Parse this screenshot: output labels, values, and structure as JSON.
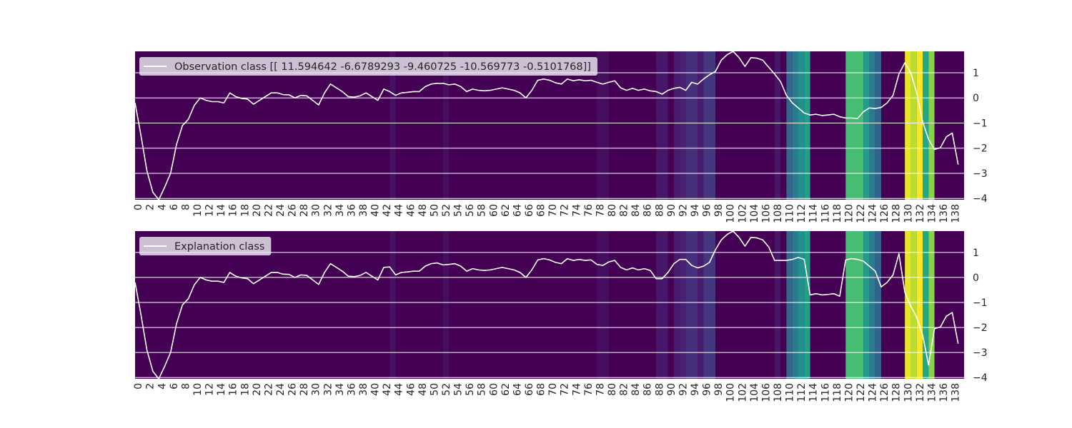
{
  "chart_data": [
    {
      "type": "line",
      "subtype": "line-over-heatmap",
      "legend_label": "Observation class [[ 11.594642   -6.6789293  -9.460725  -10.569773   -0.5101768]]",
      "legend_placement": "top-left",
      "xlim": [
        0,
        140
      ],
      "ylim": [
        -4.05,
        1.85
      ],
      "x_ticks": [
        0,
        2,
        4,
        6,
        8,
        10,
        12,
        14,
        16,
        18,
        20,
        22,
        24,
        26,
        28,
        30,
        32,
        34,
        36,
        38,
        40,
        42,
        44,
        46,
        48,
        50,
        52,
        54,
        56,
        58,
        60,
        62,
        64,
        66,
        68,
        70,
        72,
        74,
        76,
        78,
        80,
        82,
        84,
        86,
        88,
        90,
        92,
        94,
        96,
        98,
        100,
        102,
        104,
        106,
        108,
        110,
        112,
        114,
        116,
        118,
        120,
        122,
        124,
        126,
        128,
        130,
        132,
        134,
        136,
        138
      ],
      "y_ticks": [
        1,
        0,
        -1,
        -2,
        -3,
        -4
      ],
      "y_tick_labels": [
        "1",
        "0",
        "−1",
        "−2",
        "−3",
        "−4"
      ],
      "line_color": "#ffffff",
      "heatmap_colormap": "viridis",
      "series": [
        {
          "name": "observation",
          "x": [
            0,
            1,
            2,
            3,
            4,
            5,
            6,
            7,
            8,
            9,
            10,
            11,
            12,
            13,
            14,
            15,
            16,
            17,
            18,
            19,
            20,
            21,
            22,
            23,
            24,
            25,
            26,
            27,
            28,
            29,
            30,
            31,
            32,
            33,
            34,
            35,
            36,
            37,
            38,
            39,
            40,
            41,
            42,
            43,
            44,
            45,
            46,
            47,
            48,
            49,
            50,
            51,
            52,
            53,
            54,
            55,
            56,
            57,
            58,
            59,
            60,
            61,
            62,
            63,
            64,
            65,
            66,
            67,
            68,
            69,
            70,
            71,
            72,
            73,
            74,
            75,
            76,
            77,
            78,
            79,
            80,
            81,
            82,
            83,
            84,
            85,
            86,
            87,
            88,
            89,
            90,
            91,
            92,
            93,
            94,
            95,
            96,
            97,
            98,
            99,
            100,
            101,
            102,
            103,
            104,
            105,
            106,
            107,
            108,
            109,
            110,
            111,
            112,
            113,
            114,
            115,
            116,
            117,
            118,
            119,
            120,
            121,
            122,
            123,
            124,
            125,
            126,
            127,
            128,
            129,
            130,
            131,
            132,
            133,
            134,
            135,
            136,
            137,
            138,
            139
          ],
          "values": [
            -0.2,
            -1.5,
            -2.9,
            -3.75,
            -4.05,
            -3.55,
            -3.0,
            -1.85,
            -1.1,
            -0.85,
            -0.3,
            0.0,
            -0.1,
            -0.15,
            -0.15,
            -0.2,
            0.2,
            0.05,
            -0.02,
            -0.05,
            -0.25,
            -0.1,
            0.05,
            0.2,
            0.2,
            0.13,
            0.12,
            0.0,
            0.1,
            0.08,
            -0.1,
            -0.28,
            0.2,
            0.55,
            0.4,
            0.25,
            0.05,
            0.03,
            0.08,
            0.2,
            0.05,
            -0.1,
            0.35,
            0.25,
            0.1,
            0.2,
            0.22,
            0.25,
            0.25,
            0.45,
            0.55,
            0.58,
            0.58,
            0.52,
            0.55,
            0.45,
            0.25,
            0.35,
            0.3,
            0.28,
            0.3,
            0.35,
            0.4,
            0.35,
            0.3,
            0.2,
            0.0,
            0.3,
            0.7,
            0.75,
            0.7,
            0.6,
            0.55,
            0.75,
            0.68,
            0.72,
            0.68,
            0.7,
            0.62,
            0.55,
            0.62,
            0.68,
            0.4,
            0.3,
            0.38,
            0.3,
            0.35,
            0.28,
            0.25,
            0.15,
            0.3,
            0.38,
            0.42,
            0.3,
            0.62,
            0.55,
            0.75,
            0.92,
            1.05,
            1.5,
            1.72,
            1.85,
            1.6,
            1.25,
            1.6,
            1.58,
            1.5,
            1.22,
            0.95,
            0.65,
            0.1,
            -0.2,
            -0.4,
            -0.6,
            -0.68,
            -0.65,
            -0.7,
            -0.68,
            -0.65,
            -0.75,
            -0.8,
            -0.8,
            -0.82,
            -0.55,
            -0.4,
            -0.42,
            -0.38,
            -0.2,
            0.1,
            0.95,
            1.4,
            1.0,
            0.2,
            -0.95,
            -1.65,
            -2.05,
            -1.98,
            -1.55,
            -1.4,
            -2.65
          ]
        }
      ],
      "heatmap_cells": [
        {
          "x0": 43,
          "x1": 44,
          "intensity": 0.06
        },
        {
          "x0": 52,
          "x1": 53,
          "intensity": 0.05
        },
        {
          "x0": 78,
          "x1": 80,
          "intensity": 0.05
        },
        {
          "x0": 88,
          "x1": 90,
          "intensity": 0.08
        },
        {
          "x0": 91,
          "x1": 92,
          "intensity": 0.1
        },
        {
          "x0": 92,
          "x1": 93,
          "intensity": 0.12
        },
        {
          "x0": 93,
          "x1": 95,
          "intensity": 0.16
        },
        {
          "x0": 95,
          "x1": 96,
          "intensity": 0.1
        },
        {
          "x0": 96,
          "x1": 98,
          "intensity": 0.18
        },
        {
          "x0": 108,
          "x1": 109,
          "intensity": 0.08
        },
        {
          "x0": 110,
          "x1": 111,
          "intensity": 0.33
        },
        {
          "x0": 111,
          "x1": 112,
          "intensity": 0.42
        },
        {
          "x0": 112,
          "x1": 113,
          "intensity": 0.5
        },
        {
          "x0": 113,
          "x1": 114,
          "intensity": 0.56
        },
        {
          "x0": 120,
          "x1": 123,
          "intensity": 0.7
        },
        {
          "x0": 123,
          "x1": 124,
          "intensity": 0.55
        },
        {
          "x0": 124,
          "x1": 125,
          "intensity": 0.42
        },
        {
          "x0": 125,
          "x1": 126,
          "intensity": 0.32
        },
        {
          "x0": 130,
          "x1": 131,
          "intensity": 0.97
        },
        {
          "x0": 131,
          "x1": 132,
          "intensity": 0.9
        },
        {
          "x0": 132,
          "x1": 133,
          "intensity": 1.0
        },
        {
          "x0": 133,
          "x1": 134,
          "intensity": 0.6
        },
        {
          "x0": 134,
          "x1": 135,
          "intensity": 0.82
        }
      ]
    },
    {
      "type": "line",
      "subtype": "line-over-heatmap",
      "legend_label": "Explanation class",
      "legend_placement": "top-left",
      "xlim": [
        0,
        140
      ],
      "ylim": [
        -4.05,
        1.85
      ],
      "x_ticks": [
        0,
        2,
        4,
        6,
        8,
        10,
        12,
        14,
        16,
        18,
        20,
        22,
        24,
        26,
        28,
        30,
        32,
        34,
        36,
        38,
        40,
        42,
        44,
        46,
        48,
        50,
        52,
        54,
        56,
        58,
        60,
        62,
        64,
        66,
        68,
        70,
        72,
        74,
        76,
        78,
        80,
        82,
        84,
        86,
        88,
        90,
        92,
        94,
        96,
        98,
        100,
        102,
        104,
        106,
        108,
        110,
        112,
        114,
        116,
        118,
        120,
        122,
        124,
        126,
        128,
        130,
        132,
        134,
        136,
        138
      ],
      "y_ticks": [
        1,
        0,
        -1,
        -2,
        -3,
        -4
      ],
      "y_tick_labels": [
        "1",
        "0",
        "−1",
        "−2",
        "−3",
        "−4"
      ],
      "line_color": "#ffffff",
      "heatmap_colormap": "viridis",
      "series": [
        {
          "name": "explanation",
          "x": [
            0,
            1,
            2,
            3,
            4,
            5,
            6,
            7,
            8,
            9,
            10,
            11,
            12,
            13,
            14,
            15,
            16,
            17,
            18,
            19,
            20,
            21,
            22,
            23,
            24,
            25,
            26,
            27,
            28,
            29,
            30,
            31,
            32,
            33,
            34,
            35,
            36,
            37,
            38,
            39,
            40,
            41,
            42,
            43,
            44,
            45,
            46,
            47,
            48,
            49,
            50,
            51,
            52,
            53,
            54,
            55,
            56,
            57,
            58,
            59,
            60,
            61,
            62,
            63,
            64,
            65,
            66,
            67,
            68,
            69,
            70,
            71,
            72,
            73,
            74,
            75,
            76,
            77,
            78,
            79,
            80,
            81,
            82,
            83,
            84,
            85,
            86,
            87,
            88,
            89,
            90,
            91,
            92,
            93,
            94,
            95,
            96,
            97,
            98,
            99,
            100,
            101,
            102,
            103,
            104,
            105,
            106,
            107,
            108,
            109,
            110,
            111,
            112,
            113,
            114,
            115,
            116,
            117,
            118,
            119,
            120,
            121,
            122,
            123,
            124,
            125,
            126,
            127,
            128,
            129,
            130,
            131,
            132,
            133,
            134,
            135,
            136,
            137,
            138,
            139
          ],
          "values": [
            -0.2,
            -1.5,
            -2.9,
            -3.75,
            -4.05,
            -3.55,
            -3.0,
            -1.85,
            -1.1,
            -0.85,
            -0.3,
            0.0,
            -0.1,
            -0.15,
            -0.15,
            -0.2,
            0.2,
            0.05,
            -0.02,
            -0.05,
            -0.25,
            -0.1,
            0.05,
            0.2,
            0.2,
            0.13,
            0.12,
            0.0,
            0.1,
            0.08,
            -0.1,
            -0.28,
            0.2,
            0.55,
            0.4,
            0.25,
            0.05,
            0.03,
            0.08,
            0.2,
            0.05,
            -0.1,
            0.4,
            0.42,
            0.1,
            0.2,
            0.22,
            0.25,
            0.25,
            0.45,
            0.55,
            0.58,
            0.5,
            0.52,
            0.55,
            0.45,
            0.25,
            0.35,
            0.3,
            0.28,
            0.3,
            0.35,
            0.4,
            0.35,
            0.3,
            0.2,
            0.0,
            0.3,
            0.7,
            0.75,
            0.7,
            0.6,
            0.55,
            0.75,
            0.68,
            0.72,
            0.68,
            0.7,
            0.52,
            0.48,
            0.62,
            0.68,
            0.4,
            0.3,
            0.38,
            0.3,
            0.35,
            0.28,
            -0.05,
            -0.05,
            0.2,
            0.55,
            0.72,
            0.72,
            0.48,
            0.38,
            0.45,
            0.6,
            1.1,
            1.5,
            1.72,
            1.85,
            1.6,
            1.25,
            1.6,
            1.58,
            1.5,
            1.22,
            0.68,
            0.68,
            0.68,
            0.72,
            0.8,
            0.72,
            -0.7,
            -0.65,
            -0.7,
            -0.68,
            -0.65,
            -0.75,
            0.7,
            0.75,
            0.72,
            0.65,
            0.45,
            0.25,
            -0.38,
            -0.2,
            0.1,
            0.95,
            -0.6,
            -1.15,
            -1.6,
            -2.3,
            -3.5,
            -2.05,
            -1.98,
            -1.55,
            -1.4,
            -2.65
          ]
        }
      ],
      "heatmap_cells": [
        {
          "x0": 43,
          "x1": 44,
          "intensity": 0.06
        },
        {
          "x0": 52,
          "x1": 53,
          "intensity": 0.05
        },
        {
          "x0": 78,
          "x1": 80,
          "intensity": 0.05
        },
        {
          "x0": 88,
          "x1": 90,
          "intensity": 0.08
        },
        {
          "x0": 91,
          "x1": 92,
          "intensity": 0.1
        },
        {
          "x0": 92,
          "x1": 93,
          "intensity": 0.12
        },
        {
          "x0": 93,
          "x1": 95,
          "intensity": 0.16
        },
        {
          "x0": 95,
          "x1": 96,
          "intensity": 0.1
        },
        {
          "x0": 96,
          "x1": 98,
          "intensity": 0.18
        },
        {
          "x0": 108,
          "x1": 109,
          "intensity": 0.08
        },
        {
          "x0": 110,
          "x1": 111,
          "intensity": 0.33
        },
        {
          "x0": 111,
          "x1": 112,
          "intensity": 0.42
        },
        {
          "x0": 112,
          "x1": 113,
          "intensity": 0.5
        },
        {
          "x0": 113,
          "x1": 114,
          "intensity": 0.56
        },
        {
          "x0": 120,
          "x1": 123,
          "intensity": 0.7
        },
        {
          "x0": 123,
          "x1": 124,
          "intensity": 0.55
        },
        {
          "x0": 124,
          "x1": 125,
          "intensity": 0.42
        },
        {
          "x0": 125,
          "x1": 126,
          "intensity": 0.32
        },
        {
          "x0": 130,
          "x1": 131,
          "intensity": 0.97
        },
        {
          "x0": 131,
          "x1": 132,
          "intensity": 0.9
        },
        {
          "x0": 132,
          "x1": 133,
          "intensity": 1.0
        },
        {
          "x0": 133,
          "x1": 134,
          "intensity": 0.6
        },
        {
          "x0": 134,
          "x1": 135,
          "intensity": 0.82
        }
      ]
    }
  ]
}
